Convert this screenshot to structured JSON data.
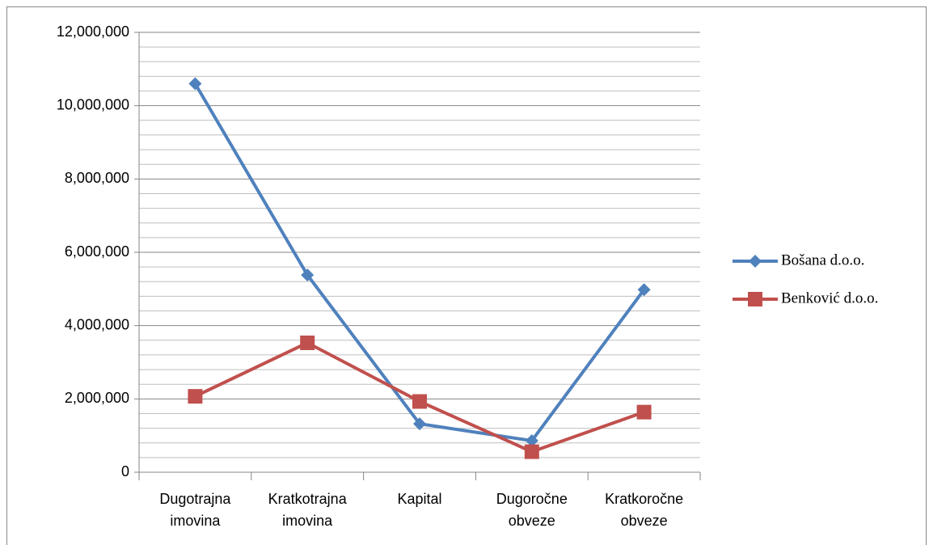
{
  "chart_data": {
    "type": "line",
    "categories": [
      "Dugotrajna imovina",
      "Kratkotrajna imovina",
      "Kapital",
      "Dugoročne obveze",
      "Kratkoročne obveze"
    ],
    "series": [
      {
        "name": "Bošana d.o.o.",
        "color": "#4f81bd",
        "marker": "diamond",
        "values": [
          10600000,
          5380000,
          1320000,
          860000,
          4980000
        ]
      },
      {
        "name": "Benković d.o.o.",
        "color": "#c0504d",
        "marker": "square",
        "values": [
          2070000,
          3530000,
          1930000,
          560000,
          1640000
        ]
      }
    ],
    "ylim": [
      0,
      12000000
    ],
    "yticks": [
      0,
      {
        "value": 2000000,
        "label": "2,000,000"
      },
      {
        "value": 4000000,
        "label": "4,000,000"
      },
      {
        "value": 6000000,
        "label": "6,000,000"
      },
      {
        "value": 8000000,
        "label": "8,000,000"
      },
      {
        "value": 10000000,
        "label": "10,000,000"
      },
      {
        "value": 12000000,
        "label": "12,000,000"
      }
    ],
    "yminorticks": [
      400000,
      800000,
      1200000,
      1600000,
      2400000,
      2800000,
      3200000,
      3600000,
      4400000,
      4800000,
      5200000,
      5600000,
      6400000,
      6800000,
      7200000,
      7600000,
      8400000,
      8800000,
      9200000,
      9600000,
      10400000,
      10800000,
      11200000,
      11600000
    ],
    "grid": true,
    "legend": "right"
  }
}
